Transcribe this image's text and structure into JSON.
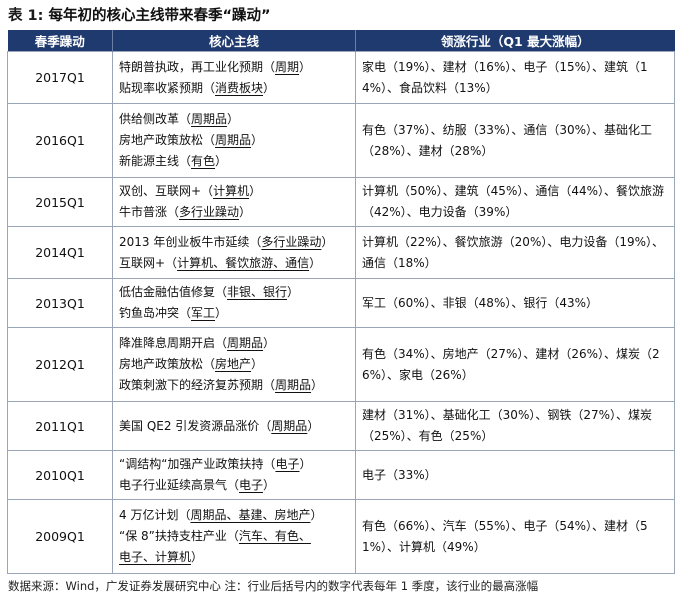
{
  "title": {
    "label": "表 1:",
    "text": "每年初的核心主线带来春季“躁动”"
  },
  "headers": [
    "春季躁动",
    "核心主线",
    "领涨行业（Q1 最大涨幅）"
  ],
  "rows": [
    {
      "quarter": "2017Q1",
      "theme_lines": [
        [
          {
            "t": "特朗普执政，再工业化预期（"
          },
          {
            "t": "周期",
            "u": true
          },
          {
            "t": "）"
          }
        ],
        [
          {
            "t": "贴现率收紧预期（"
          },
          {
            "t": "消费板块",
            "u": true
          },
          {
            "t": "）"
          }
        ]
      ],
      "sectors": "家电（19%）、建材（16%）、电子（15%）、建筑（14%）、食品饮料（13%）"
    },
    {
      "quarter": "2016Q1",
      "theme_lines": [
        [
          {
            "t": "供给侧改革（"
          },
          {
            "t": "周期品",
            "u": true
          },
          {
            "t": "）"
          }
        ],
        [
          {
            "t": "房地产政策放松（"
          },
          {
            "t": "周期品",
            "u": true
          },
          {
            "t": "）"
          }
        ],
        [
          {
            "t": "新能源主线（"
          },
          {
            "t": "有色",
            "u": true
          },
          {
            "t": "）"
          }
        ]
      ],
      "sectors": "有色（37%）、纺服（33%）、通信（30%）、基础化工（28%）、建材（28%）"
    },
    {
      "quarter": "2015Q1",
      "theme_lines": [
        [
          {
            "t": "双创、互联网+（"
          },
          {
            "t": "计算机",
            "u": true
          },
          {
            "t": "）"
          }
        ],
        [
          {
            "t": "牛市普涨（"
          },
          {
            "t": "多行业躁动",
            "u": true
          },
          {
            "t": "）"
          }
        ]
      ],
      "sectors": "计算机（50%）、建筑（45%）、通信（44%）、餐饮旅游（42%）、电力设备（39%）"
    },
    {
      "quarter": "2014Q1",
      "theme_lines": [
        [
          {
            "t": "2013 年创业板牛市延续（"
          },
          {
            "t": "多行业躁动",
            "u": true
          },
          {
            "t": "）"
          }
        ],
        [
          {
            "t": "互联网+（"
          },
          {
            "t": "计算机、餐饮旅游、通信",
            "u": true
          },
          {
            "t": "）"
          }
        ]
      ],
      "sectors": "计算机（22%）、餐饮旅游（20%）、电力设备（19%）、通信（18%）"
    },
    {
      "quarter": "2013Q1",
      "theme_lines": [
        [
          {
            "t": "低估金融估值修复（"
          },
          {
            "t": "非银、银行",
            "u": true
          },
          {
            "t": "）"
          }
        ],
        [
          {
            "t": "钓鱼岛冲突（"
          },
          {
            "t": "军工",
            "u": true
          },
          {
            "t": "）"
          }
        ]
      ],
      "sectors": "军工（60%）、非银（48%）、银行（43%）"
    },
    {
      "quarter": "2012Q1",
      "theme_lines": [
        [
          {
            "t": "降准降息周期开启（"
          },
          {
            "t": "周期品",
            "u": true
          },
          {
            "t": "）"
          }
        ],
        [
          {
            "t": "房地产政策放松（"
          },
          {
            "t": "房地产",
            "u": true
          },
          {
            "t": "）"
          }
        ],
        [
          {
            "t": "政策刺激下的经济复苏预期（"
          },
          {
            "t": "周期品",
            "u": true
          },
          {
            "t": "）"
          }
        ]
      ],
      "sectors": "有色（34%）、房地产（27%）、建材（26%）、煤炭（26%）、家电（26%）"
    },
    {
      "quarter": "2011Q1",
      "theme_lines": [
        [
          {
            "t": "美国 QE2 引发资源品涨价（"
          },
          {
            "t": "周期品",
            "u": true
          },
          {
            "t": "）"
          }
        ]
      ],
      "sectors": "建材（31%）、基础化工（30%）、钢铁（27%）、煤炭（25%）、有色（25%）"
    },
    {
      "quarter": "2010Q1",
      "theme_lines": [
        [
          {
            "t": "“调结构“加强产业政策扶持（"
          },
          {
            "t": "电子",
            "u": true
          },
          {
            "t": "）"
          }
        ],
        [
          {
            "t": "电子行业延续高景气（"
          },
          {
            "t": "电子",
            "u": true
          },
          {
            "t": "）"
          }
        ]
      ],
      "sectors": "电子（33%）"
    },
    {
      "quarter": "2009Q1",
      "theme_lines": [
        [
          {
            "t": "4 万亿计划（"
          },
          {
            "t": "周期品、基建、房地产",
            "u": true
          },
          {
            "t": "）"
          }
        ],
        [
          {
            "t": "“保 8”扶持支柱产业（"
          },
          {
            "t": "汽车、有色、",
            "u": true
          }
        ],
        [
          {
            "t": "电子、计算机",
            "u": true
          },
          {
            "t": "）"
          }
        ]
      ],
      "sectors": "有色（66%）、汽车（55%）、电子（54%）、建材（51%）、计算机（49%）"
    }
  ],
  "source": "数据来源：Wind，广发证券发展研究中心   注：行业后括号内的数字代表每年 1 季度，该行业的最高涨幅"
}
